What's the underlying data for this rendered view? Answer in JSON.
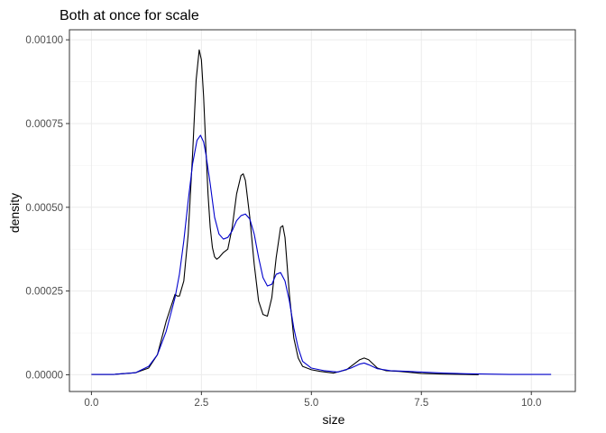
{
  "chart_data": {
    "type": "line",
    "title": "Both at once for scale",
    "xlabel": "size",
    "ylabel": "density",
    "xlim": [
      -0.5,
      11.0
    ],
    "ylim": [
      -5e-05,
      0.00103
    ],
    "xticks": [
      0,
      2.5,
      5,
      7.5,
      10
    ],
    "xtick_labels": [
      "0.0",
      "2.5",
      "5.0",
      "7.5",
      "10.0"
    ],
    "yticks": [
      0,
      0.00025,
      0.0005,
      0.00075,
      0.001
    ],
    "ytick_labels": [
      "0.00000",
      "0.00025",
      "0.00050",
      "0.00075",
      "0.00100"
    ],
    "grid": true,
    "legend": "none",
    "series": [
      {
        "color": "#000000",
        "x": [
          0.0,
          0.5,
          1.0,
          1.3,
          1.5,
          1.6,
          1.7,
          1.8,
          1.9,
          1.95,
          2.0,
          2.1,
          2.2,
          2.3,
          2.38,
          2.45,
          2.5,
          2.55,
          2.6,
          2.65,
          2.7,
          2.75,
          2.8,
          2.85,
          2.9,
          3.0,
          3.1,
          3.2,
          3.3,
          3.4,
          3.45,
          3.5,
          3.6,
          3.7,
          3.8,
          3.9,
          4.0,
          4.1,
          4.2,
          4.3,
          4.35,
          4.4,
          4.5,
          4.6,
          4.7,
          4.8,
          5.0,
          5.2,
          5.5,
          5.8,
          6.0,
          6.1,
          6.2,
          6.3,
          6.5,
          6.7,
          7.0,
          7.5,
          8.0,
          8.5,
          8.8
        ],
        "y": [
          1e-06,
          1e-06,
          6e-06,
          2e-05,
          6e-05,
          0.00011,
          0.00016,
          0.0002,
          0.00024,
          0.000235,
          0.000235,
          0.00028,
          0.00042,
          0.00066,
          0.00088,
          0.00097,
          0.00094,
          0.00083,
          0.00068,
          0.00054,
          0.00044,
          0.00038,
          0.000352,
          0.000345,
          0.00035,
          0.000365,
          0.000375,
          0.00044,
          0.00054,
          0.000595,
          0.0006,
          0.00058,
          0.00047,
          0.00033,
          0.00022,
          0.00018,
          0.000175,
          0.00023,
          0.00035,
          0.00044,
          0.000445,
          0.00041,
          0.00024,
          0.00011,
          5e-05,
          2.5e-05,
          1.5e-05,
          1e-05,
          5e-06,
          1.5e-05,
          3.5e-05,
          4.5e-05,
          5e-05,
          4.5e-05,
          2e-05,
          1.2e-05,
          1e-05,
          4e-06,
          2e-06,
          1e-06,
          0.0
        ]
      },
      {
        "color": "#0000cc",
        "x": [
          0.0,
          0.5,
          1.0,
          1.3,
          1.5,
          1.7,
          1.9,
          2.0,
          2.1,
          2.2,
          2.3,
          2.4,
          2.48,
          2.55,
          2.6,
          2.7,
          2.8,
          2.9,
          3.0,
          3.1,
          3.2,
          3.3,
          3.4,
          3.5,
          3.6,
          3.7,
          3.8,
          3.9,
          4.0,
          4.1,
          4.2,
          4.3,
          4.4,
          4.5,
          4.6,
          4.7,
          4.8,
          5.0,
          5.3,
          5.6,
          5.9,
          6.1,
          6.2,
          6.3,
          6.5,
          6.8,
          7.2,
          7.5,
          8.0,
          8.5,
          9.0,
          9.5,
          10.0,
          10.45
        ],
        "y": [
          1e-06,
          1e-06,
          6e-06,
          2.5e-05,
          6e-05,
          0.00013,
          0.00023,
          0.0003,
          0.0004,
          0.00052,
          0.00063,
          0.0007,
          0.000715,
          0.000695,
          0.00066,
          0.00057,
          0.00047,
          0.00042,
          0.000405,
          0.00041,
          0.00043,
          0.00046,
          0.000475,
          0.00048,
          0.000465,
          0.00042,
          0.00035,
          0.00029,
          0.000265,
          0.00027,
          0.0003,
          0.000305,
          0.00028,
          0.00022,
          0.00014,
          8e-05,
          4e-05,
          2e-05,
          1.2e-05,
          8e-06,
          2e-05,
          3.2e-05,
          3.5e-05,
          3e-05,
          1.8e-05,
          1.2e-05,
          1e-05,
          8e-06,
          5e-06,
          3e-06,
          2e-06,
          1e-06,
          1e-06,
          1e-06
        ]
      }
    ]
  }
}
